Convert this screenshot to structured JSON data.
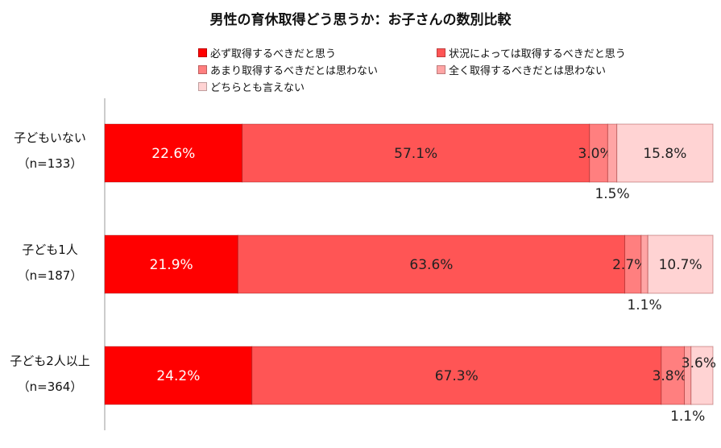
{
  "chart_data": {
    "type": "bar",
    "orientation": "horizontal",
    "stacked": true,
    "percent_stacked": true,
    "title": "男性の育休取得どう思うか：お子さんの数別比較",
    "legend_position": "top",
    "categories": [
      {
        "label": "子どもいない",
        "n": "（n=133）"
      },
      {
        "label": "子ども1人",
        "n": "（n=187）"
      },
      {
        "label": "子ども2人以上",
        "n": "（n=364）"
      }
    ],
    "series": [
      {
        "name": "必ず取得するべきだと思う",
        "color": "#ff0000",
        "values": [
          22.6,
          21.9,
          24.2
        ],
        "labels": [
          "22.6%",
          "21.9%",
          "24.2%"
        ]
      },
      {
        "name": "状況によっては取得するべきだと思う",
        "color": "#ff5555",
        "values": [
          57.1,
          63.6,
          67.3
        ],
        "labels": [
          "57.1%",
          "63.6%",
          "67.3%"
        ]
      },
      {
        "name": "あまり取得するべきだとは思わない",
        "color": "#ff7f7f",
        "values": [
          3.0,
          2.7,
          3.8
        ],
        "labels": [
          "3.0%",
          "2.7%",
          "3.8%"
        ]
      },
      {
        "name": "全く取得するべきだとは思わない",
        "color": "#ffa5a5",
        "values": [
          1.5,
          1.1,
          1.1
        ],
        "labels": [
          "1.5%",
          "1.1%",
          "1.1%"
        ]
      },
      {
        "name": "どちらとも言えない",
        "color": "#ffd3d3",
        "values": [
          15.8,
          10.7,
          3.6
        ],
        "labels": [
          "15.8%",
          "10.7%",
          "3.6%"
        ]
      }
    ],
    "xlim": [
      0,
      100
    ]
  }
}
